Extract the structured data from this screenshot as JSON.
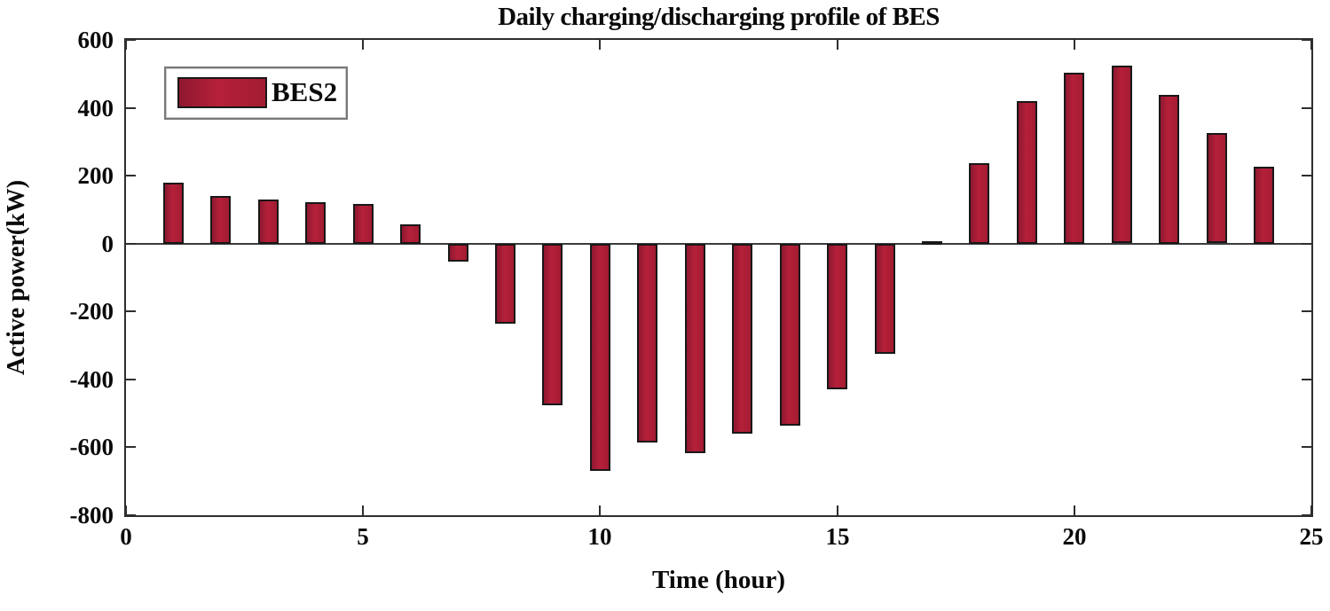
{
  "chart_data": {
    "type": "bar",
    "title": "Daily charging/discharging profile of BES",
    "xlabel": "Time (hour)",
    "ylabel": "Active power(kW)",
    "legend_label": "BES2",
    "legend_position": "top-left",
    "grid": false,
    "xlim": [
      0,
      25
    ],
    "ylim": [
      -800,
      600
    ],
    "xticks": [
      0,
      5,
      10,
      15,
      20,
      25
    ],
    "yticks": [
      600,
      400,
      200,
      0,
      -200,
      -400,
      -600,
      -800
    ],
    "bar_color": "#a81d34",
    "bar_edge_color": "#181818",
    "x": [
      1,
      2,
      3,
      4,
      5,
      6,
      7,
      8,
      9,
      10,
      11,
      12,
      13,
      14,
      15,
      16,
      17,
      18,
      19,
      20,
      21,
      22,
      23,
      24
    ],
    "series": [
      {
        "name": "BES2",
        "values": [
          180,
          140,
          131,
          123,
          118,
          58,
          -52,
          -235,
          -475,
          -668,
          -585,
          -617,
          -560,
          -536,
          -428,
          -323,
          8,
          238,
          420,
          503,
          523,
          438,
          325,
          227
        ]
      }
    ]
  }
}
